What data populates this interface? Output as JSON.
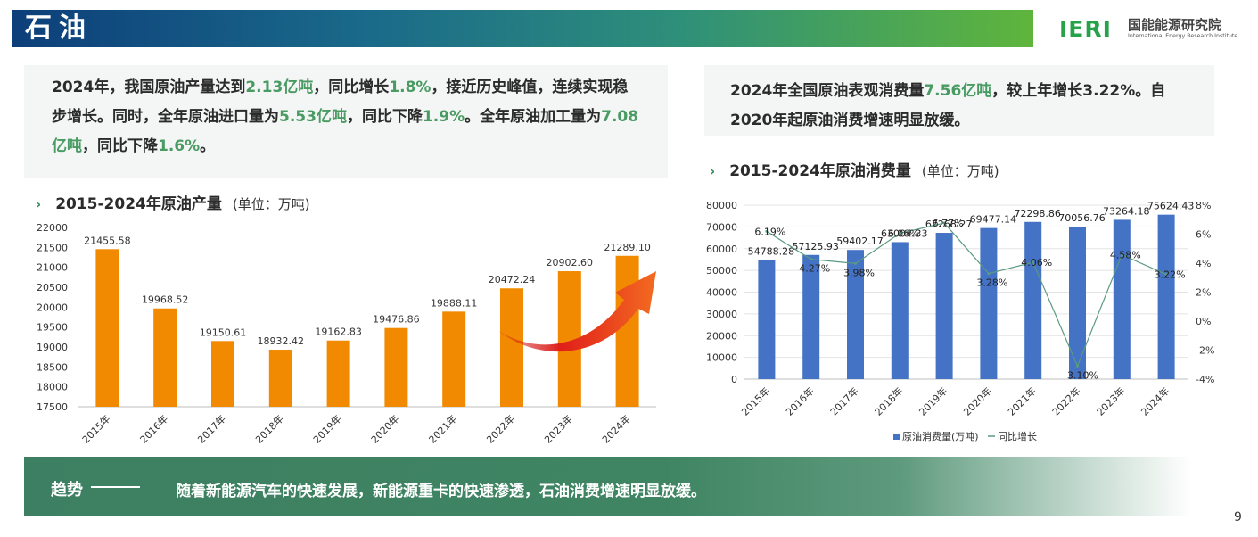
{
  "header": {
    "title": "石油"
  },
  "logo": {
    "mark": "IERI",
    "cn": "国能能源研究院",
    "en": "International Energy Research Institute"
  },
  "left_info": [
    {
      "t": "2024年，我国原油产量达到",
      "h": false
    },
    {
      "t": "2.13亿吨",
      "h": true
    },
    {
      "t": "，同比增长",
      "h": false
    },
    {
      "t": "1.8%",
      "h": true
    },
    {
      "t": "，接近历史峰值，连续实现稳步增长。同时，全年原油进口量为",
      "h": false
    },
    {
      "t": "5.53亿吨",
      "h": true
    },
    {
      "t": "，同比下降",
      "h": false
    },
    {
      "t": "1.9%",
      "h": true
    },
    {
      "t": "。全年原油加工量为",
      "h": false
    },
    {
      "t": "7.08亿吨",
      "h": true
    },
    {
      "t": "，同比下降",
      "h": false
    },
    {
      "t": "1.6%",
      "h": true
    },
    {
      "t": "。",
      "h": false
    }
  ],
  "right_info": [
    {
      "t": "2024年全国原油表观消费量",
      "h": false
    },
    {
      "t": "7.56亿吨",
      "h": true
    },
    {
      "t": "，较上年增长3.22%。自2020年起原油消费增速明显放缓。",
      "h": false
    }
  ],
  "left_chart_title": {
    "chevron": "›",
    "title": "2015-2024年原油产量",
    "unit": "(单位：万吨)"
  },
  "right_chart_title": {
    "chevron": "›",
    "title": "2015-2024年原油消费量",
    "unit": "(单位：万吨)"
  },
  "trend": {
    "label": "趋势",
    "text": "随着新能源汽车的快速发展，新能源重卡的快速渗透，石油消费增速明显放缓。"
  },
  "page_number": "9",
  "colors": {
    "production_bar": "#f18a00",
    "consumption_bar": "#4472c4",
    "growth_line": "#5b9a80",
    "arrow": "#e8241b",
    "highlight": "#4a9a63"
  },
  "chart_data": [
    {
      "type": "bar",
      "title": "2015-2024年原油产量",
      "categories": [
        "2015年",
        "2016年",
        "2017年",
        "2018年",
        "2019年",
        "2020年",
        "2021年",
        "2022年",
        "2023年",
        "2024年"
      ],
      "values": [
        21455.58,
        19968.52,
        19150.61,
        18932.42,
        19162.83,
        19476.86,
        19888.11,
        20472.24,
        20902.6,
        21289.1
      ],
      "data_labels": [
        "21455.58",
        "19968.52",
        "19150.61",
        "18932.42",
        "19162.83",
        "19476.86",
        "19888.11",
        "20472.24",
        "20902.60",
        "21289.10"
      ],
      "ylim": [
        17500,
        22000
      ],
      "yticks": [
        "17500",
        "18000",
        "18500",
        "19000",
        "19500",
        "20000",
        "20500",
        "21000",
        "21500",
        "22000"
      ],
      "grid": false,
      "annotation": "red-curved-arrow"
    },
    {
      "type": "bar",
      "title": "2015-2024年原油消费量",
      "categories": [
        "2015年",
        "2016年",
        "2017年",
        "2018年",
        "2019年",
        "2020年",
        "2021年",
        "2022年",
        "2023年",
        "2024年"
      ],
      "series": [
        {
          "name": "原油消费量(万吨)",
          "type": "bar",
          "values": [
            54788.28,
            57125.93,
            59402.17,
            63004.33,
            67268.27,
            69477.14,
            72298.86,
            70056.76,
            73264.18,
            75624.43
          ],
          "labels": [
            "54788.28",
            "57125.93",
            "59402.17",
            "63004.33",
            "67268.27",
            "69477.14",
            "72298.86",
            "70056.76",
            "73264.18",
            "75624.43"
          ]
        },
        {
          "name": "同比增长",
          "type": "line",
          "axis": "right",
          "values": [
            6.19,
            4.27,
            3.98,
            6.06,
            6.77,
            3.28,
            4.06,
            -3.1,
            4.58,
            3.22
          ],
          "labels": [
            "6.19%",
            "4.27%",
            "3.98%",
            "6.06%",
            "6.77%",
            "3.28%",
            "4.06%",
            "-3.10%",
            "4.58%",
            "3.22%"
          ]
        }
      ],
      "ylim": [
        0,
        80000
      ],
      "yticks": [
        "0",
        "10000",
        "20000",
        "30000",
        "40000",
        "50000",
        "60000",
        "70000",
        "80000"
      ],
      "y2lim": [
        -4,
        8
      ],
      "y2ticks": [
        "-4%",
        "-2%",
        "0%",
        "2%",
        "4%",
        "6%",
        "8%"
      ],
      "legend_position": "bottom",
      "grid": true
    }
  ]
}
